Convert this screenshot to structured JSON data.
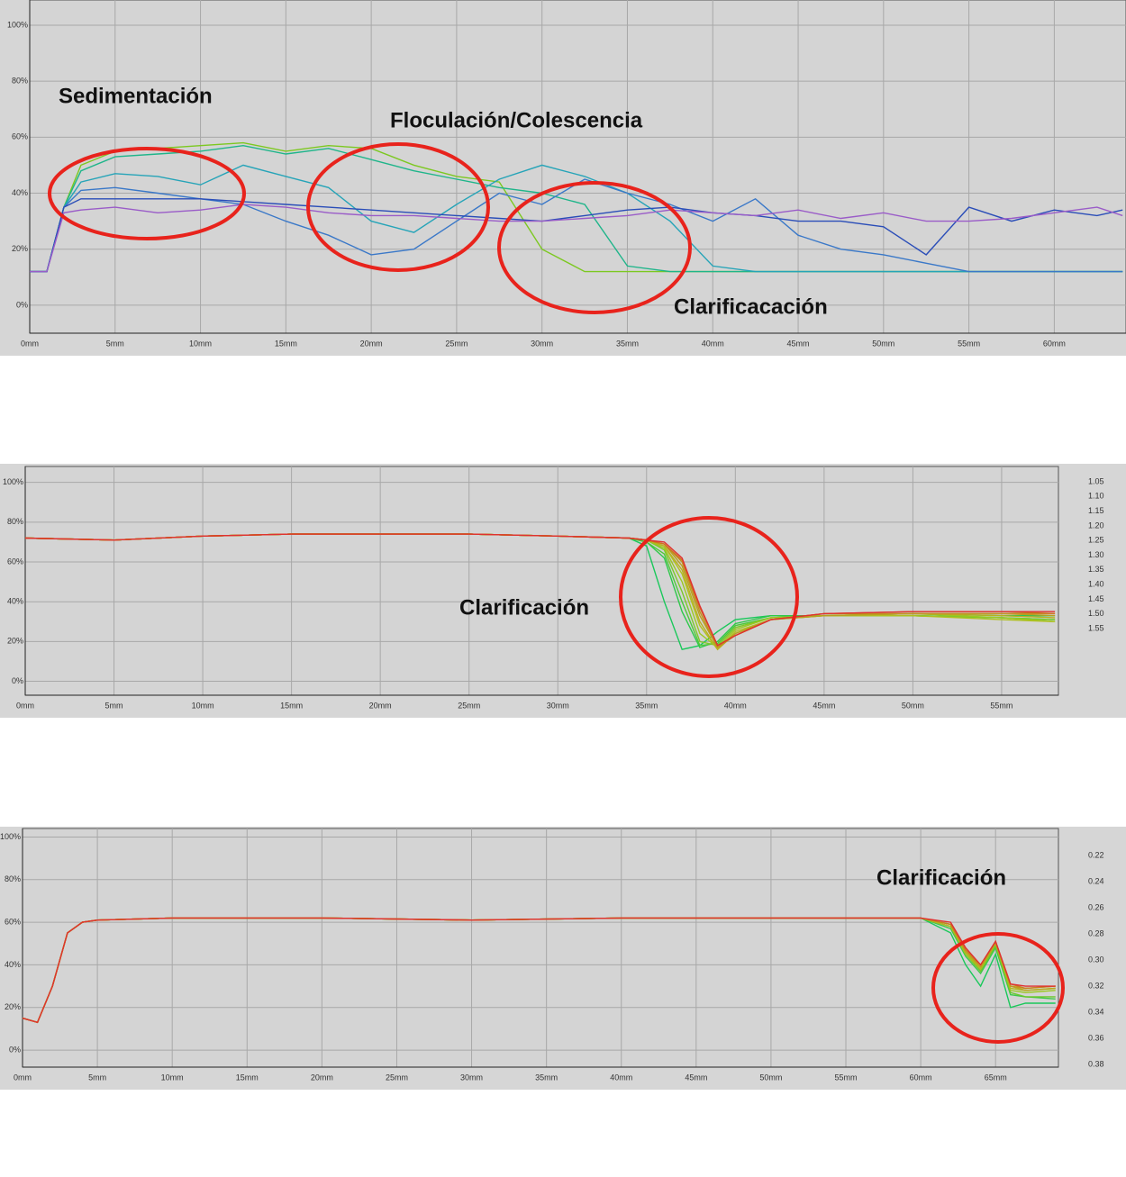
{
  "chart_data": [
    {
      "type": "line",
      "annotations": [
        "Sedimentación",
        "Floculación/Colescencia",
        "Clarificacación"
      ],
      "x": [
        0,
        1,
        2,
        3,
        5,
        7.5,
        10,
        12.5,
        15,
        17.5,
        20,
        22.5,
        25,
        27.5,
        30,
        32.5,
        35,
        37.5,
        40,
        42.5,
        45,
        47.5,
        50,
        52.5,
        55,
        57.5,
        60,
        62.5,
        64
      ],
      "xlim": [
        0,
        64.2
      ],
      "ylim": [
        -10,
        109
      ],
      "grid": true,
      "xticks": [
        {
          "value": 0,
          "label": "0mm"
        },
        {
          "value": 5,
          "label": "5mm"
        },
        {
          "value": 10,
          "label": "10mm"
        },
        {
          "value": 15,
          "label": "15mm"
        },
        {
          "value": 20,
          "label": "20mm"
        },
        {
          "value": 25,
          "label": "25mm"
        },
        {
          "value": 30,
          "label": "30mm"
        },
        {
          "value": 35,
          "label": "35mm"
        },
        {
          "value": 40,
          "label": "40mm"
        },
        {
          "value": 45,
          "label": "45mm"
        },
        {
          "value": 50,
          "label": "50mm"
        },
        {
          "value": 55,
          "label": "55mm"
        },
        {
          "value": 60,
          "label": "60mm"
        }
      ],
      "yticks": [
        {
          "value": 0,
          "label": "0%"
        },
        {
          "value": 20,
          "label": "20%"
        },
        {
          "value": 40,
          "label": "40%"
        },
        {
          "value": 60,
          "label": "60%"
        },
        {
          "value": 80,
          "label": "80%"
        },
        {
          "value": 100,
          "label": "100%"
        }
      ],
      "series": [
        {
          "color": "#7cc820",
          "values": [
            12,
            12,
            35,
            50,
            55,
            56,
            57,
            58,
            55,
            57,
            56,
            50,
            46,
            44,
            20,
            12,
            12,
            12,
            12,
            12,
            12,
            12,
            12,
            12,
            12,
            12,
            12,
            12,
            12
          ]
        },
        {
          "color": "#1fb58a",
          "values": [
            12,
            12,
            35,
            48,
            53,
            54,
            55,
            57,
            54,
            56,
            52,
            48,
            45,
            42,
            40,
            36,
            14,
            12,
            12,
            12,
            12,
            12,
            12,
            12,
            12,
            12,
            12,
            12,
            12
          ]
        },
        {
          "color": "#26a4b8",
          "values": [
            12,
            12,
            35,
            44,
            47,
            46,
            43,
            50,
            46,
            42,
            30,
            26,
            36,
            45,
            50,
            46,
            40,
            30,
            14,
            12,
            12,
            12,
            12,
            12,
            12,
            12,
            12,
            12,
            12
          ]
        },
        {
          "color": "#3a78c8",
          "values": [
            12,
            12,
            35,
            41,
            42,
            40,
            38,
            36,
            30,
            25,
            18,
            20,
            30,
            40,
            36,
            45,
            40,
            36,
            30,
            38,
            25,
            20,
            18,
            15,
            12,
            12,
            12,
            12,
            12
          ]
        },
        {
          "color": "#2a4db8",
          "values": [
            12,
            12,
            35,
            38,
            38,
            38,
            38,
            37,
            36,
            35,
            34,
            33,
            32,
            31,
            30,
            32,
            34,
            35,
            33,
            32,
            30,
            30,
            28,
            18,
            35,
            30,
            34,
            32,
            34
          ]
        },
        {
          "color": "#9a5cc8",
          "values": [
            12,
            12,
            33,
            34,
            35,
            33,
            34,
            36,
            35,
            33,
            32,
            32,
            31,
            30,
            30,
            31,
            32,
            34,
            33,
            32,
            34,
            31,
            33,
            30,
            30,
            31,
            33,
            35,
            32
          ]
        }
      ]
    },
    {
      "type": "line",
      "annotations": [
        "Clarificación"
      ],
      "x": [
        0,
        5,
        10,
        15,
        20,
        25,
        30,
        34,
        35,
        36,
        37,
        38,
        39,
        40,
        42,
        45,
        50,
        55,
        58
      ],
      "xlim": [
        0,
        58.2
      ],
      "ylim": [
        -7,
        108
      ],
      "grid": true,
      "legend": "right",
      "xticks": [
        {
          "value": 0,
          "label": "0mm"
        },
        {
          "value": 5,
          "label": "5mm"
        },
        {
          "value": 10,
          "label": "10mm"
        },
        {
          "value": 15,
          "label": "15mm"
        },
        {
          "value": 20,
          "label": "20mm"
        },
        {
          "value": 25,
          "label": "25mm"
        },
        {
          "value": 30,
          "label": "30mm"
        },
        {
          "value": 35,
          "label": "35mm"
        },
        {
          "value": 40,
          "label": "40mm"
        },
        {
          "value": 45,
          "label": "45mm"
        },
        {
          "value": 50,
          "label": "50mm"
        },
        {
          "value": 55,
          "label": "55mm"
        }
      ],
      "yticks": [
        {
          "value": 0,
          "label": "0%"
        },
        {
          "value": 20,
          "label": "20%"
        },
        {
          "value": 40,
          "label": "40%"
        },
        {
          "value": 60,
          "label": "60%"
        },
        {
          "value": 80,
          "label": "80%"
        },
        {
          "value": 100,
          "label": "100%"
        }
      ],
      "series": [
        {
          "name": "1.05",
          "color": "#19c85a",
          "values": [
            72,
            71,
            73,
            74,
            74,
            74,
            73,
            72,
            68,
            40,
            16,
            18,
            25,
            31,
            33,
            33,
            34,
            33,
            33
          ]
        },
        {
          "name": "1.10",
          "color": "#2ec84a",
          "values": [
            72,
            71,
            73,
            74,
            74,
            74,
            73,
            72,
            70,
            62,
            35,
            17,
            20,
            29,
            33,
            33,
            33,
            32,
            31
          ]
        },
        {
          "name": "1.15",
          "color": "#4ec83a",
          "values": [
            72,
            71,
            73,
            74,
            74,
            74,
            73,
            72,
            70,
            64,
            40,
            18,
            19,
            28,
            32,
            33,
            33,
            32,
            30
          ]
        },
        {
          "name": "1.20",
          "color": "#7cc82a",
          "values": [
            72,
            71,
            73,
            74,
            74,
            74,
            73,
            72,
            71,
            66,
            45,
            20,
            18,
            27,
            32,
            33,
            33,
            32,
            31
          ]
        },
        {
          "name": "1.25",
          "color": "#9cc820",
          "values": [
            72,
            71,
            73,
            74,
            74,
            74,
            73,
            72,
            71,
            67,
            50,
            24,
            17,
            26,
            32,
            33,
            34,
            32,
            30
          ]
        },
        {
          "name": "1.30",
          "color": "#b0c020",
          "values": [
            72,
            71,
            73,
            74,
            74,
            74,
            73,
            72,
            71,
            68,
            54,
            28,
            16,
            25,
            31,
            33,
            33,
            31,
            30
          ]
        },
        {
          "name": "1.35",
          "color": "#b8b020",
          "values": [
            72,
            71,
            73,
            74,
            74,
            74,
            73,
            72,
            71,
            68,
            56,
            30,
            16,
            24,
            31,
            33,
            34,
            33,
            32
          ]
        },
        {
          "name": "1.40",
          "color": "#b8a020",
          "values": [
            72,
            71,
            73,
            74,
            74,
            74,
            73,
            72,
            71,
            69,
            58,
            33,
            17,
            24,
            31,
            33,
            34,
            34,
            33
          ]
        },
        {
          "name": "1.45",
          "color": "#c09020",
          "values": [
            72,
            71,
            73,
            74,
            74,
            74,
            73,
            72,
            71,
            69,
            60,
            35,
            17,
            23,
            31,
            34,
            34,
            34,
            34
          ]
        },
        {
          "name": "1.50",
          "color": "#d07020",
          "values": [
            72,
            71,
            73,
            74,
            74,
            74,
            73,
            72,
            71,
            69,
            61,
            37,
            18,
            23,
            31,
            34,
            35,
            35,
            34
          ]
        },
        {
          "name": "1.55",
          "color": "#e03030",
          "values": [
            72,
            71,
            73,
            74,
            74,
            74,
            73,
            72,
            71,
            70,
            62,
            38,
            18,
            23,
            31,
            34,
            35,
            35,
            35
          ]
        }
      ]
    },
    {
      "type": "line",
      "annotations": [
        "Clarificación"
      ],
      "x": [
        0,
        1,
        2,
        3,
        4,
        5,
        10,
        20,
        30,
        40,
        50,
        60,
        62,
        63,
        64,
        65,
        66,
        67,
        69
      ],
      "xlim": [
        0,
        69.2
      ],
      "ylim": [
        -8,
        104
      ],
      "grid": true,
      "legend": "right",
      "xticks": [
        {
          "value": 0,
          "label": "0mm"
        },
        {
          "value": 5,
          "label": "5mm"
        },
        {
          "value": 10,
          "label": "10mm"
        },
        {
          "value": 15,
          "label": "15mm"
        },
        {
          "value": 20,
          "label": "20mm"
        },
        {
          "value": 25,
          "label": "25mm"
        },
        {
          "value": 30,
          "label": "30mm"
        },
        {
          "value": 35,
          "label": "35mm"
        },
        {
          "value": 40,
          "label": "40mm"
        },
        {
          "value": 45,
          "label": "45mm"
        },
        {
          "value": 50,
          "label": "50mm"
        },
        {
          "value": 55,
          "label": "55mm"
        },
        {
          "value": 60,
          "label": "60mm"
        },
        {
          "value": 65,
          "label": "65mm"
        }
      ],
      "yticks": [
        {
          "value": 0,
          "label": "0%"
        },
        {
          "value": 20,
          "label": "20%"
        },
        {
          "value": 40,
          "label": "40%"
        },
        {
          "value": 60,
          "label": "60%"
        },
        {
          "value": 80,
          "label": "80%"
        },
        {
          "value": 100,
          "label": "100%"
        }
      ],
      "series": [
        {
          "name": "0.22",
          "color": "#19c85a",
          "values": [
            15,
            13,
            30,
            55,
            60,
            61,
            62,
            62,
            61,
            62,
            62,
            62,
            55,
            40,
            30,
            45,
            20,
            22,
            22
          ]
        },
        {
          "name": "0.24",
          "color": "#3ec84a",
          "values": [
            15,
            13,
            30,
            55,
            60,
            61,
            62,
            62,
            61,
            62,
            62,
            62,
            57,
            44,
            36,
            48,
            26,
            25,
            24
          ]
        },
        {
          "name": "0.26",
          "color": "#6cc82a",
          "values": [
            15,
            13,
            30,
            55,
            60,
            61,
            62,
            62,
            61,
            62,
            62,
            62,
            58,
            45,
            37,
            49,
            27,
            25,
            25
          ]
        },
        {
          "name": "0.28",
          "color": "#9cc820",
          "values": [
            15,
            13,
            30,
            55,
            60,
            61,
            62,
            62,
            61,
            62,
            62,
            62,
            58,
            45,
            38,
            50,
            28,
            27,
            28
          ]
        },
        {
          "name": "0.30",
          "color": "#b0b820",
          "values": [
            15,
            13,
            30,
            55,
            60,
            61,
            62,
            62,
            61,
            62,
            62,
            62,
            58,
            46,
            38,
            50,
            29,
            28,
            29
          ]
        },
        {
          "name": "0.32",
          "color": "#b8a820",
          "values": [
            15,
            13,
            30,
            55,
            60,
            61,
            62,
            62,
            61,
            62,
            62,
            62,
            59,
            46,
            39,
            50,
            30,
            28,
            29
          ]
        },
        {
          "name": "0.34",
          "color": "#c09820",
          "values": [
            15,
            13,
            30,
            55,
            60,
            61,
            62,
            62,
            61,
            62,
            62,
            62,
            59,
            47,
            39,
            51,
            30,
            29,
            30
          ]
        },
        {
          "name": "0.36",
          "color": "#c88020",
          "values": [
            15,
            13,
            30,
            55,
            60,
            61,
            62,
            62,
            61,
            62,
            62,
            62,
            59,
            47,
            40,
            51,
            31,
            29,
            30
          ]
        },
        {
          "name": "0.38",
          "color": "#e03030",
          "values": [
            15,
            13,
            30,
            55,
            60,
            61,
            62,
            62,
            61,
            62,
            62,
            62,
            60,
            48,
            40,
            51,
            31,
            30,
            30
          ]
        }
      ]
    }
  ]
}
